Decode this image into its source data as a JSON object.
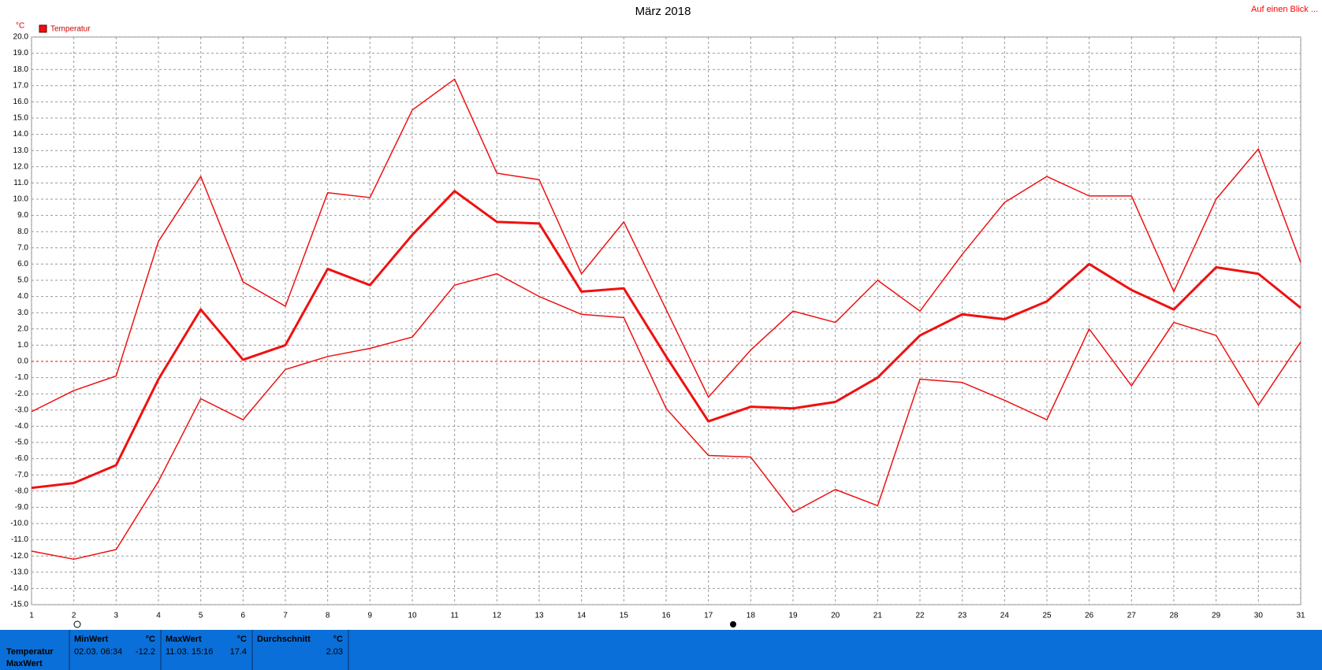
{
  "chart_data": {
    "type": "line",
    "title": "März 2018",
    "y_unit": "°C",
    "link": "Auf einen Blick ...",
    "x": [
      1,
      2,
      3,
      4,
      5,
      6,
      7,
      8,
      9,
      10,
      11,
      12,
      13,
      14,
      15,
      16,
      17,
      18,
      19,
      20,
      21,
      22,
      23,
      24,
      25,
      26,
      27,
      28,
      29,
      30,
      31
    ],
    "xlim": [
      1,
      31
    ],
    "xticks": [
      1,
      2,
      3,
      4,
      5,
      6,
      7,
      8,
      9,
      10,
      11,
      12,
      13,
      14,
      15,
      16,
      17,
      18,
      19,
      20,
      21,
      22,
      23,
      24,
      25,
      26,
      27,
      28,
      29,
      30,
      31
    ],
    "ylim": [
      -15,
      20
    ],
    "yticks": [
      {
        "value": 20,
        "label": "20.0"
      },
      {
        "value": 19,
        "label": "19.0"
      },
      {
        "value": 18,
        "label": "18.0"
      },
      {
        "value": 17,
        "label": "17.0"
      },
      {
        "value": 16,
        "label": "16.0"
      },
      {
        "value": 15,
        "label": "15.0"
      },
      {
        "value": 14,
        "label": "14.0"
      },
      {
        "value": 13,
        "label": "13.0"
      },
      {
        "value": 12,
        "label": "12.0"
      },
      {
        "value": 11,
        "label": "11.0"
      },
      {
        "value": 10,
        "label": "10.0"
      },
      {
        "value": 9,
        "label": "9.0"
      },
      {
        "value": 8,
        "label": "8.0"
      },
      {
        "value": 7,
        "label": "7.0"
      },
      {
        "value": 6,
        "label": "6.0"
      },
      {
        "value": 5,
        "label": "5.0"
      },
      {
        "value": 4,
        "label": "4.0"
      },
      {
        "value": 3,
        "label": "3.0"
      },
      {
        "value": 2,
        "label": "2.0"
      },
      {
        "value": 1,
        "label": "1.0"
      },
      {
        "value": 0,
        "label": "0.0"
      },
      {
        "value": -1,
        "label": "-1.0"
      },
      {
        "value": -2,
        "label": "-2.0"
      },
      {
        "value": -3,
        "label": "-3.0"
      },
      {
        "value": -4,
        "label": "-4.0"
      },
      {
        "value": -5,
        "label": "-5.0"
      },
      {
        "value": -6,
        "label": "-6.0"
      },
      {
        "value": -7,
        "label": "-7.0"
      },
      {
        "value": -8,
        "label": "-8.0"
      },
      {
        "value": -9,
        "label": "-9.0"
      },
      {
        "value": -10,
        "label": "-10.0"
      },
      {
        "value": -11,
        "label": "-11.0"
      },
      {
        "value": -12,
        "label": "-12.0"
      },
      {
        "value": -13,
        "label": "-13.0"
      },
      {
        "value": -14,
        "label": "-14.0"
      },
      {
        "value": -15,
        "label": "-15.0"
      }
    ],
    "grid": true,
    "zero_line_color": "#ff0000",
    "series": [
      {
        "name": "Temperatur",
        "color": "#ee1111",
        "width": 3,
        "values": [
          -7.8,
          -7.5,
          -6.4,
          -1.1,
          3.2,
          0.1,
          1.0,
          5.7,
          4.7,
          7.8,
          10.5,
          8.6,
          8.5,
          4.3,
          4.5,
          0.3,
          -3.7,
          -2.8,
          -2.9,
          -2.5,
          -1.0,
          1.6,
          2.9,
          2.6,
          3.7,
          6.0,
          4.4,
          3.2,
          5.8,
          5.4,
          3.3
        ]
      },
      {
        "color": "#ee1111",
        "width": 1.5,
        "values": [
          -3.1,
          -1.8,
          -0.9,
          7.4,
          11.4,
          4.9,
          3.4,
          10.4,
          10.1,
          15.5,
          17.4,
          11.6,
          11.2,
          5.4,
          8.6,
          3.2,
          -2.2,
          0.7,
          3.1,
          2.4,
          5.0,
          3.1,
          6.6,
          9.8,
          11.4,
          10.2,
          10.2,
          4.3,
          10.0,
          13.1,
          6.1
        ]
      },
      {
        "color": "#ee1111",
        "width": 1.5,
        "values": [
          -11.7,
          -12.2,
          -11.6,
          -7.4,
          -2.3,
          -3.6,
          -0.5,
          0.3,
          0.8,
          1.5,
          4.7,
          5.4,
          4.0,
          2.9,
          2.7,
          -2.9,
          -5.8,
          -5.9,
          -9.3,
          -7.9,
          -8.9,
          -1.1,
          -1.3,
          -2.4,
          -3.6,
          2.0,
          -1.5,
          2.4,
          1.6,
          -2.7,
          1.2
        ]
      }
    ]
  },
  "stats": {
    "rows": [
      "Temperatur",
      "MaxWert"
    ],
    "columns": [
      {
        "header": "MinWert",
        "unit": "°C",
        "time": "02.03. 06:34",
        "value": "-12.2"
      },
      {
        "header": "MaxWert",
        "unit": "°C",
        "time": "11.03. 15:16",
        "value": "17.4"
      },
      {
        "header": "Durchschnitt",
        "unit": "°C",
        "value": "2.03"
      }
    ]
  }
}
